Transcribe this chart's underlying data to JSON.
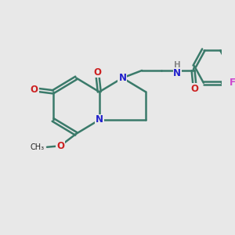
{
  "bg_color": "#e8e8e8",
  "bond_color": "#3a7a6a",
  "bond_width": 1.8,
  "atom_colors": {
    "N": "#2020cc",
    "O": "#cc2020",
    "F": "#cc44cc",
    "H": "#888888"
  }
}
